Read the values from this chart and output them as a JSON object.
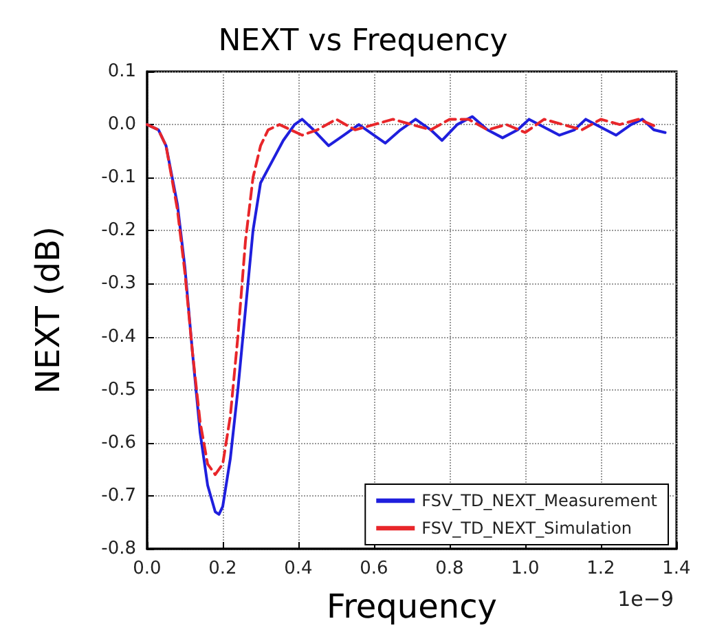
{
  "chart_data": {
    "type": "line",
    "title": "NEXT vs Frequency",
    "xlabel": "Frequency",
    "ylabel": "NEXT (dB)",
    "annotations": [
      "1e−9"
    ],
    "xlim": [
      0,
      1.4
    ],
    "xticks": [
      {
        "value": 0,
        "label": "0.0"
      },
      0.2,
      0.4,
      0.6,
      0.8,
      {
        "value": 1,
        "label": "1.0"
      },
      1.2,
      1.4
    ],
    "ylim": [
      -0.8,
      0.1
    ],
    "yticks": [
      -0.8,
      -0.7,
      -0.6,
      -0.5,
      -0.4,
      -0.3,
      -0.2,
      -0.1,
      {
        "value": 0,
        "label": "0.0"
      },
      0.1
    ],
    "grid": true,
    "legend": "bottom right",
    "marker": "none",
    "series": [
      {
        "name": "FSV_TD_NEXT_Measurement",
        "color": "#1f1fdd",
        "line_style": "solid",
        "x": [
          0,
          0.03,
          0.05,
          0.08,
          0.1,
          0.12,
          0.14,
          0.16,
          0.18,
          0.19,
          0.2,
          0.22,
          0.24,
          0.26,
          0.28,
          0.3,
          0.33,
          0.36,
          0.39,
          0.41,
          0.44,
          0.48,
          0.52,
          0.56,
          0.6,
          0.63,
          0.67,
          0.71,
          0.75,
          0.78,
          0.82,
          0.86,
          0.9,
          0.94,
          0.98,
          1.01,
          1.05,
          1.09,
          1.13,
          1.16,
          1.2,
          1.24,
          1.28,
          1.31,
          1.34,
          1.37
        ],
        "values": [
          0,
          -0.01,
          -0.04,
          -0.15,
          -0.27,
          -0.43,
          -0.58,
          -0.68,
          -0.73,
          -0.735,
          -0.72,
          -0.63,
          -0.5,
          -0.35,
          -0.2,
          -0.11,
          -0.07,
          -0.03,
          0,
          0.01,
          -0.01,
          -0.04,
          -0.02,
          0,
          -0.02,
          -0.035,
          -0.01,
          0.01,
          -0.01,
          -0.03,
          0,
          0.015,
          -0.01,
          -0.025,
          -0.01,
          0.01,
          -0.005,
          -0.02,
          -0.01,
          0.01,
          -0.005,
          -0.02,
          0,
          0.01,
          -0.01,
          -0.015
        ]
      },
      {
        "name": "FSV_TD_NEXT_Simulation",
        "color": "#e8262a",
        "line_style": "dashed",
        "x": [
          0,
          0.03,
          0.05,
          0.08,
          0.1,
          0.12,
          0.14,
          0.16,
          0.18,
          0.2,
          0.22,
          0.24,
          0.26,
          0.28,
          0.3,
          0.32,
          0.35,
          0.38,
          0.41,
          0.45,
          0.5,
          0.55,
          0.6,
          0.65,
          0.7,
          0.75,
          0.8,
          0.85,
          0.9,
          0.95,
          1,
          1.05,
          1.1,
          1.15,
          1.2,
          1.25,
          1.3,
          1.35
        ],
        "values": [
          0,
          -0.01,
          -0.04,
          -0.16,
          -0.28,
          -0.43,
          -0.56,
          -0.64,
          -0.66,
          -0.64,
          -0.55,
          -0.4,
          -0.22,
          -0.1,
          -0.04,
          -0.01,
          0,
          -0.01,
          -0.02,
          -0.01,
          0.01,
          -0.01,
          0,
          0.01,
          0,
          -0.01,
          0.01,
          0.01,
          -0.01,
          0,
          -0.015,
          0.01,
          0,
          -0.01,
          0.01,
          0,
          0.01,
          -0.005
        ]
      }
    ]
  }
}
